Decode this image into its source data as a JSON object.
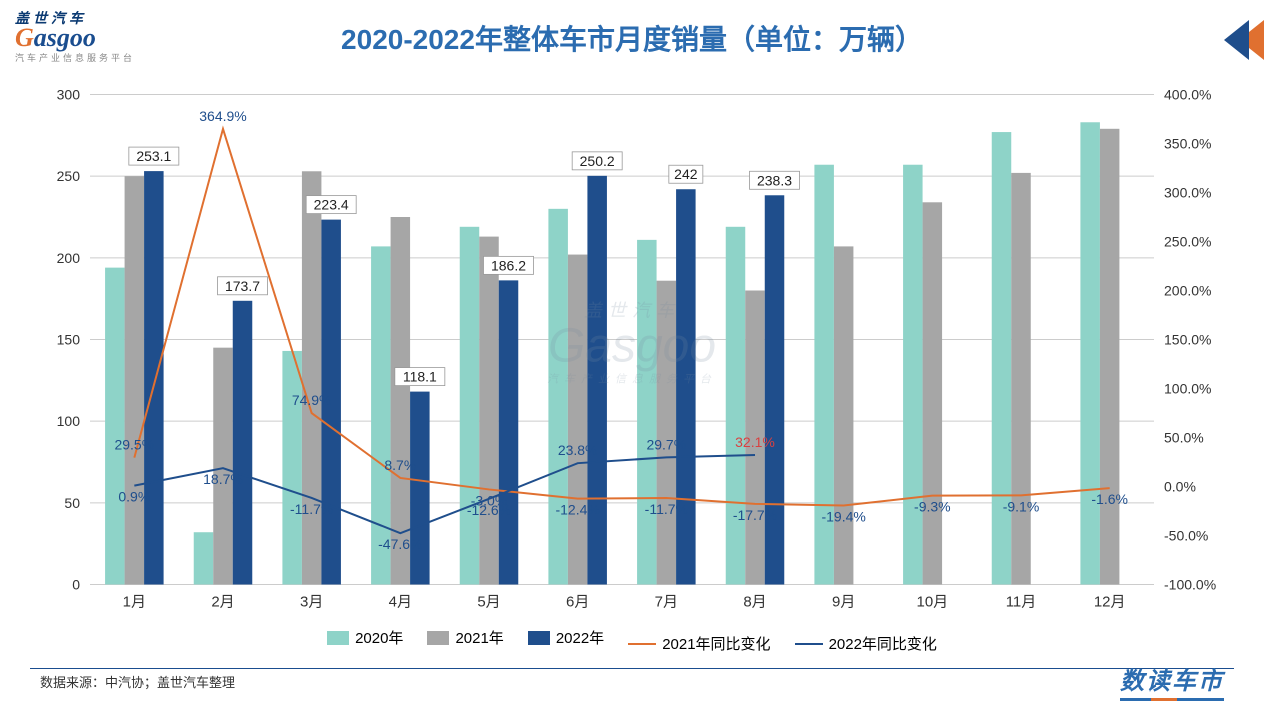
{
  "logo": {
    "cn": "盖世汽车",
    "en_prefix": "G",
    "en_rest": "asgoo",
    "sub": "汽车产业信息服务平台"
  },
  "title": {
    "text": "2020-2022年整体车市月度销量（单位：万辆）",
    "color": "#2b6cb0",
    "fontsize": 28
  },
  "chart": {
    "type": "bar+line-dual-axis",
    "background": "#ffffff",
    "categories": [
      "1月",
      "2月",
      "3月",
      "4月",
      "5月",
      "6月",
      "7月",
      "8月",
      "9月",
      "10月",
      "11月",
      "12月"
    ],
    "left_axis": {
      "min": 0,
      "max": 300,
      "step": 50,
      "label_fontsize": 14,
      "color": "#333333"
    },
    "right_axis": {
      "min": -100,
      "max": 400,
      "step": 50,
      "suffix": "%",
      "label_fontsize": 14,
      "color": "#333333"
    },
    "grid_color": "#cccccc",
    "bar_width_ratio": 0.22,
    "series_bars": [
      {
        "name": "2020年",
        "color": "#8ed3c8",
        "values": [
          194,
          32,
          143,
          207,
          219,
          230,
          211,
          219,
          257,
          257,
          277,
          283
        ]
      },
      {
        "name": "2021年",
        "color": "#a6a6a6",
        "values": [
          250,
          145,
          253,
          225,
          213,
          202,
          186,
          180,
          207,
          234,
          252,
          279
        ]
      },
      {
        "name": "2022年",
        "color": "#1f4e8c",
        "values": [
          253.1,
          173.7,
          223.4,
          118.1,
          186.2,
          250.2,
          242,
          238.3,
          null,
          null,
          null,
          null
        ],
        "data_labels": [
          "253.1",
          "173.7",
          "223.4",
          "118.1",
          "186.2",
          "250.2",
          "242",
          "238.3"
        ]
      }
    ],
    "series_lines": [
      {
        "name": "2021年同比变化",
        "color": "#e07030",
        "width": 2,
        "values": [
          29.5,
          364.9,
          74.9,
          8.7,
          -3.0,
          -12.4,
          -11.7,
          -17.7,
          -19.4,
          -9.3,
          -9.1,
          -1.6
        ],
        "labels": [
          "29.5%",
          "364.9%",
          "74.9%",
          "8.7%",
          "-3.0%",
          "-12.4%",
          "-11.7%",
          "-17.7%",
          "-19.4%",
          "-9.3%",
          "-9.1%",
          "-1.6%"
        ],
        "label_color": "#1f4e8c"
      },
      {
        "name": "2022年同比变化",
        "color": "#1f4e8c",
        "width": 2,
        "values": [
          0.9,
          18.7,
          -11.7,
          -47.6,
          -12.6,
          23.8,
          29.7,
          32.1,
          null,
          null,
          null,
          null
        ],
        "labels": [
          "0.9%",
          "18.7%",
          "-11.7%",
          "-47.6%",
          "-12.6%",
          "23.8%",
          "29.7%",
          "32.1%"
        ],
        "label_positions": [
          "below",
          "below",
          "below",
          "below",
          "below",
          "above",
          "above",
          "above"
        ],
        "special_color_index": 7,
        "special_color": "#d94040"
      }
    ],
    "legend": [
      {
        "type": "box",
        "color": "#8ed3c8",
        "text": "2020年"
      },
      {
        "type": "box",
        "color": "#a6a6a6",
        "text": "2021年"
      },
      {
        "type": "box",
        "color": "#1f4e8c",
        "text": "2022年"
      },
      {
        "type": "line",
        "color": "#e07030",
        "text": "2021年同比变化"
      },
      {
        "type": "line",
        "color": "#1f4e8c",
        "text": "2022年同比变化"
      }
    ]
  },
  "source": "数据来源：中汽协；盖世汽车整理",
  "footer_brand": "数读车市",
  "watermark": {
    "cn": "盖世汽车",
    "en": "Gasgoo",
    "sub": "汽车产业信息服务平台"
  }
}
